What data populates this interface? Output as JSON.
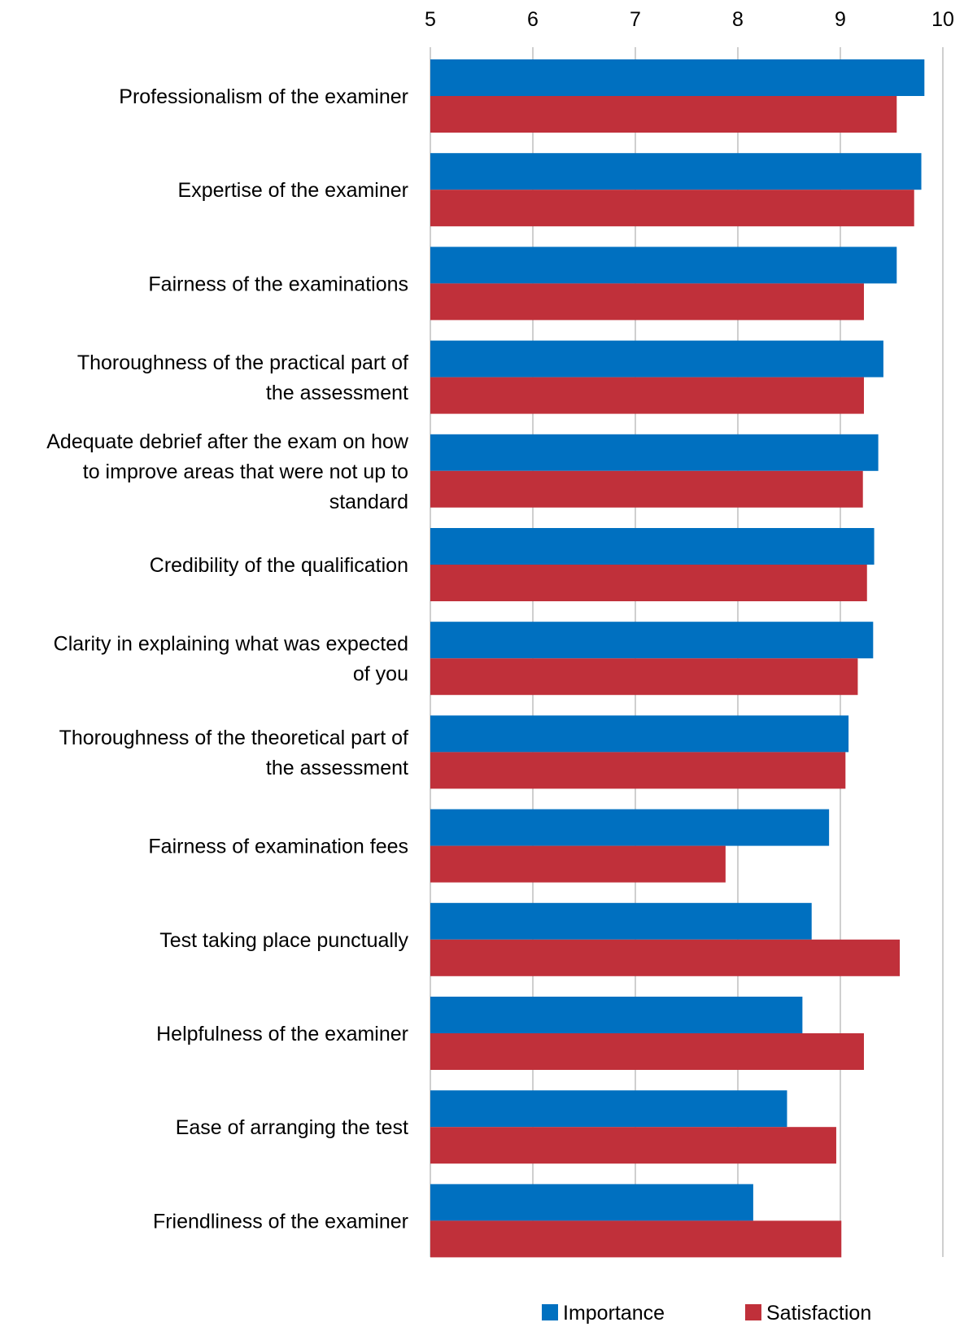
{
  "chart_data": {
    "type": "bar",
    "orientation": "horizontal",
    "title": "",
    "xlabel": "",
    "ylabel": "",
    "xlim": [
      5,
      10
    ],
    "xticks": [
      5,
      6,
      7,
      8,
      9,
      10
    ],
    "grid": true,
    "legend_position": "bottom",
    "categories": [
      [
        "Professionalism of the examiner"
      ],
      [
        "Expertise of the examiner"
      ],
      [
        "Fairness of the examinations"
      ],
      [
        "Thoroughness of the practical part of",
        "the assessment"
      ],
      [
        "Adequate debrief after the exam on how",
        "to improve areas that were not up to",
        "standard"
      ],
      [
        "Credibility of the qualification"
      ],
      [
        "Clarity in explaining what was expected",
        "of you"
      ],
      [
        "Thoroughness of the theoretical part of",
        "the assessment"
      ],
      [
        "Fairness of examination fees"
      ],
      [
        "Test taking place punctually"
      ],
      [
        "Helpfulness of the examiner"
      ],
      [
        "Ease of arranging the test"
      ],
      [
        "Friendliness of the examiner"
      ]
    ],
    "series": [
      {
        "name": "Importance",
        "color": "#0070C0",
        "values": [
          9.82,
          9.79,
          9.55,
          9.42,
          9.37,
          9.33,
          9.32,
          9.08,
          8.89,
          8.72,
          8.63,
          8.48,
          8.15
        ]
      },
      {
        "name": "Satisfaction",
        "color": "#C0303A",
        "values": [
          9.55,
          9.72,
          9.23,
          9.23,
          9.22,
          9.26,
          9.17,
          9.05,
          7.88,
          9.58,
          9.23,
          8.96,
          9.01
        ]
      }
    ]
  }
}
